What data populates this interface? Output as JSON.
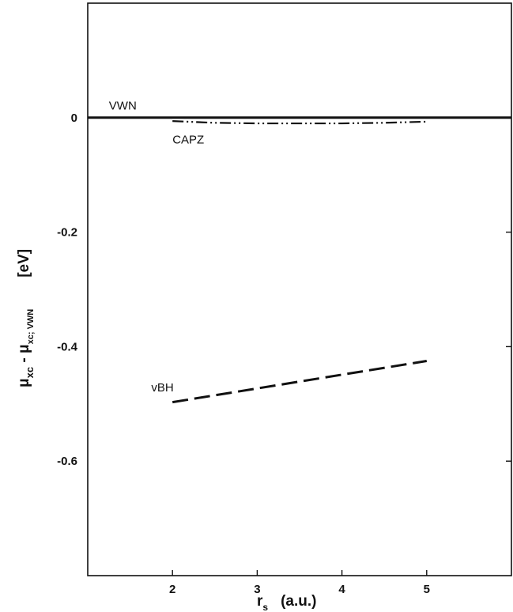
{
  "chart_data": {
    "type": "line",
    "xlabel": {
      "main": "r",
      "sub": "s",
      "unit": "(a.u.)"
    },
    "ylabel": {
      "mu1": "μ",
      "sub1": "xc",
      "minus": " - ",
      "mu2": "μ",
      "sub2": "xc; VWN",
      "unit": "[eV]"
    },
    "xlim": [
      1,
      6
    ],
    "ylim": [
      -0.8,
      0.2
    ],
    "x_ticks": [
      2,
      3,
      4,
      5
    ],
    "x_tick_labels": [
      "2",
      "3",
      "4",
      "5"
    ],
    "y_ticks": [
      0,
      -0.2,
      -0.4,
      -0.6
    ],
    "y_tick_labels": [
      "0",
      "-0.2",
      "-0.4",
      "-0.6"
    ],
    "grid": false,
    "series": [
      {
        "name": "VWN",
        "style": "solid",
        "x": [
          1,
          6
        ],
        "y": [
          0,
          0
        ]
      },
      {
        "name": "CAPZ",
        "style": "dash-dot-dot",
        "x": [
          2,
          2.5,
          3,
          3.5,
          4,
          4.5,
          5
        ],
        "y": [
          -0.006,
          -0.009,
          -0.01,
          -0.01,
          -0.01,
          -0.009,
          -0.007
        ]
      },
      {
        "name": "vBH",
        "style": "dashed",
        "x": [
          2,
          3,
          4,
          5
        ],
        "y": [
          -0.497,
          -0.473,
          -0.449,
          -0.425
        ]
      }
    ]
  }
}
